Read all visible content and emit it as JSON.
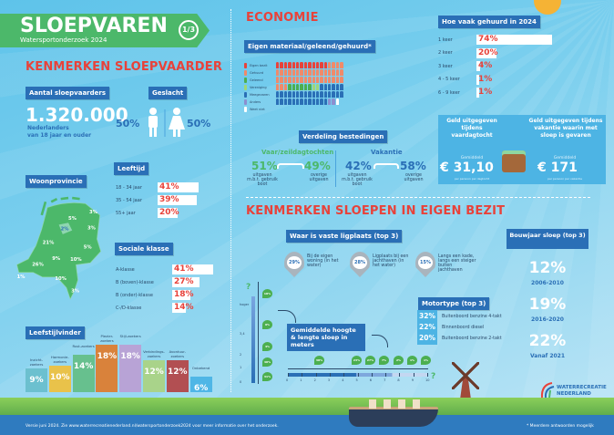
{
  "header": {
    "title": "SLOEPVAREN",
    "subtitle": "Watersportonderzoek 2024",
    "page": "1/3"
  },
  "sloepvaarder": {
    "heading": "KENMERKEN SLOEPVAARDER",
    "aantal_label": "Aantal sloepvaarders",
    "aantal": "1.320.000",
    "aantal_sub1": "Nederlanders",
    "aantal_sub2": "van 18 jaar en ouder",
    "geslacht_label": "Geslacht",
    "man": "50%",
    "vrouw": "50%",
    "leeftijd_label": "Leeftijd",
    "leeftijd": [
      {
        "label": "18 - 34 jaar",
        "value": "41%",
        "pct": 41
      },
      {
        "label": "35 - 54 jaar",
        "value": "39%",
        "pct": 39
      },
      {
        "label": "55+ jaar",
        "value": "20%",
        "pct": 20
      }
    ],
    "woonprovincie_label": "Woonprovincie",
    "provincies": {
      "groningen": "3%",
      "friesland": "5%",
      "drenthe": "3%",
      "overijssel": "5%",
      "flevoland": "2%",
      "gelderland": "10%",
      "utrecht": "9%",
      "noord_holland": "21%",
      "zuid_holland": "26%",
      "zeeland": "1%",
      "noord_brabant": "10%",
      "limburg": "3%"
    },
    "sociale_label": "Sociale klasse",
    "sociale": [
      {
        "label": "A-klasse",
        "value": "41%",
        "pct": 41
      },
      {
        "label": "B (boven)-klasse",
        "value": "27%",
        "pct": 27
      },
      {
        "label": "B (onder)-klasse",
        "value": "18%",
        "pct": 18
      },
      {
        "label": "C-/D-klasse",
        "value": "14%",
        "pct": 14
      }
    ],
    "leefstijl_label": "Leefstijlvinder",
    "leefstijl": [
      {
        "name": "Inzicht-zoekers",
        "value": "9%",
        "pct": 9,
        "color": "#6cc0cf"
      },
      {
        "name": "Harmonie-zoekers",
        "value": "10%",
        "pct": 10,
        "color": "#e9c24a"
      },
      {
        "name": "Rust-zoekers",
        "value": "14%",
        "pct": 14,
        "color": "#67c08e"
      },
      {
        "name": "Plezier-zoekers",
        "value": "18%",
        "pct": 18,
        "color": "#d9823b"
      },
      {
        "name": "Stijl-zoekers",
        "value": "18%",
        "pct": 18,
        "color": "#b8a3d6"
      },
      {
        "name": "Verbindings-zoekers",
        "value": "12%",
        "pct": 12,
        "color": "#a9d38a"
      },
      {
        "name": "Avontuur-zoekers",
        "value": "12%",
        "pct": 12,
        "color": "#b24f52"
      },
      {
        "name": "Onbekend",
        "value": "6%",
        "pct": 6,
        "color": "#4fb6e6"
      }
    ]
  },
  "economie": {
    "heading": "ECONOMIE",
    "eigen_label": "Eigen materiaal/geleend/gehuurd*",
    "legend": [
      {
        "name": "Eigen bezit",
        "color": "#e8423a",
        "count": 13
      },
      {
        "name": "Gehuurd",
        "color": "#f08a6a",
        "count": 41
      },
      {
        "name": "Geleend",
        "color": "#4caf50",
        "count": 6
      },
      {
        "name": "Vereniging",
        "color": "#9ed77a",
        "count": 2
      },
      {
        "name": "Meegevaren",
        "color": "#2a6fb6",
        "count": 36
      },
      {
        "name": "Anders",
        "color": "#8c8fd0",
        "count": 2
      },
      {
        "name": "Weet niet",
        "color": "#ffffff",
        "count": 1
      }
    ],
    "verdeling_label": "Verdeling bestedingen",
    "dagtocht": {
      "title": "Vaar/zeildagtochten",
      "boot": "51%",
      "overig": "49%",
      "boot_sub": "uitgaven m.b.t. gebruik boot",
      "overig_sub": "overige uitgaven"
    },
    "vakantie": {
      "title": "Vakantie",
      "boot": "42%",
      "overig": "58%",
      "boot_sub": "uitgaven m.b.t. gebruik boot",
      "overig_sub": "overige uitgaven"
    },
    "gehuurd_label": "Hoe vaak gehuurd in 2024",
    "gehuurd": [
      {
        "label": "1 keer",
        "value": "74%",
        "pct": 74
      },
      {
        "label": "2 keer",
        "value": "20%",
        "pct": 20
      },
      {
        "label": "3 keer",
        "value": "4%",
        "pct": 4
      },
      {
        "label": "4 - 5 keer",
        "value": "1%",
        "pct": 1
      },
      {
        "label": "6 - 9 keer",
        "value": "1%",
        "pct": 1
      }
    ],
    "geld1": {
      "title": "Geld uitgegeven tijdens vaardagtocht",
      "gem": "Gemiddeld",
      "amount": "€ 31,10",
      "sub": "per persoon per dagtocht"
    },
    "geld2": {
      "title": "Geld uitgegeven tijdens vakantie waarin met sloep is gevaren",
      "gem": "Gemiddeld",
      "amount": "€ 171",
      "sub": "per persoon per vakantie"
    }
  },
  "bezit": {
    "heading": "KENMERKEN SLOEPEN IN EIGEN BEZIT",
    "ligplaats_label": "Waar is vaste ligplaats (top 3)",
    "ligplaats": [
      {
        "value": "29%",
        "text": "Bij de eigen woning (in het water)"
      },
      {
        "value": "28%",
        "text": "Ligplaats bij een jachthaven (in het water)"
      },
      {
        "value": "15%",
        "text": "Langs een kade, langs een steiger buiten jachthaven"
      }
    ],
    "bouwjaar_label": "Bouwjaar sloep (top 3)",
    "bouwjaar": [
      {
        "value": "12%",
        "label": "2006-2010"
      },
      {
        "value": "19%",
        "label": "2016-2020"
      },
      {
        "value": "22%",
        "label": "Vanaf 2021"
      }
    ],
    "motor_label": "Motortype (top 3)",
    "motor": [
      {
        "value": "32%",
        "label": "Buitenboord benzine 4-takt"
      },
      {
        "value": "22%",
        "label": "Binnenboord diesel"
      },
      {
        "value": "20%",
        "label": "Buitenboord benzine 2-takt"
      }
    ],
    "afm_label": "Gemiddelde hoogte & lengte sloep in meters",
    "hoogte_ticks": [
      "0",
      "1",
      "2",
      "3,4",
      "hoger"
    ],
    "hoogte_pct": [
      "31%",
      "40%",
      "4%",
      "9%",
      "18%"
    ],
    "lengte_ticks": [
      "0",
      "1",
      "2",
      "3",
      "4",
      "5",
      "6",
      "7",
      "8",
      "9",
      "10"
    ],
    "lengte_pct": [
      "38%",
      "23%",
      "27%",
      "7%",
      "2%",
      "1%",
      "1%"
    ],
    "unknown": "?"
  },
  "logo": {
    "line1": "WATERRECREATIE",
    "line2": "NEDERLAND"
  },
  "footer": {
    "text": "Versie juni 2024. Zie www.waterrecreatienederland.nl/watersportonderzoek2024 voor meer informatie over het onderzoek.",
    "note": "* Meerdere antwoorden mogelijk"
  }
}
